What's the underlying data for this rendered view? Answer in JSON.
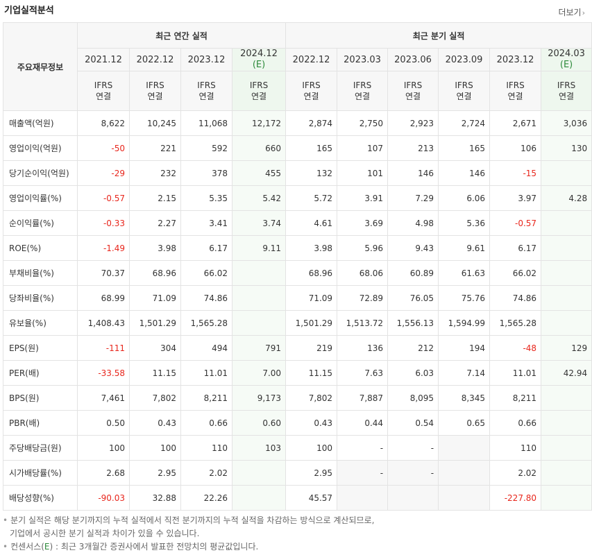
{
  "title": "기업실적분석",
  "more_label": "더보기",
  "header": {
    "main_label": "주요재무정보",
    "annual_label": "최근 연간 실적",
    "quarter_label": "최근 분기 실적",
    "est_mark": "(E)",
    "columns": [
      {
        "date": "2021.12",
        "standard": "IFRS",
        "basis": "연결",
        "est": false
      },
      {
        "date": "2022.12",
        "standard": "IFRS",
        "basis": "연결",
        "est": false
      },
      {
        "date": "2023.12",
        "standard": "IFRS",
        "basis": "연결",
        "est": false
      },
      {
        "date": "2024.12",
        "standard": "IFRS",
        "basis": "연결",
        "est": true
      },
      {
        "date": "2022.12",
        "standard": "IFRS",
        "basis": "연결",
        "est": false
      },
      {
        "date": "2023.03",
        "standard": "IFRS",
        "basis": "연결",
        "est": false
      },
      {
        "date": "2023.06",
        "standard": "IFRS",
        "basis": "연결",
        "est": false
      },
      {
        "date": "2023.09",
        "standard": "IFRS",
        "basis": "연결",
        "est": false
      },
      {
        "date": "2023.12",
        "standard": "IFRS",
        "basis": "연결",
        "est": false
      },
      {
        "date": "2024.03",
        "standard": "IFRS",
        "basis": "연결",
        "est": true
      }
    ]
  },
  "rows": [
    {
      "label": "매출액(억원)",
      "values": [
        "8,622",
        "10,245",
        "11,068",
        "12,172",
        "2,874",
        "2,750",
        "2,923",
        "2,724",
        "2,671",
        "3,036"
      ]
    },
    {
      "label": "영업이익(억원)",
      "values": [
        "-50",
        "221",
        "592",
        "660",
        "165",
        "107",
        "213",
        "165",
        "106",
        "130"
      ]
    },
    {
      "label": "당기순이익(억원)",
      "values": [
        "-29",
        "232",
        "378",
        "455",
        "132",
        "101",
        "146",
        "146",
        "-15",
        ""
      ]
    },
    {
      "label": "영업이익률(%)",
      "values": [
        "-0.57",
        "2.15",
        "5.35",
        "5.42",
        "5.72",
        "3.91",
        "7.29",
        "6.06",
        "3.97",
        "4.28"
      ]
    },
    {
      "label": "순이익률(%)",
      "values": [
        "-0.33",
        "2.27",
        "3.41",
        "3.74",
        "4.61",
        "3.69",
        "4.98",
        "5.36",
        "-0.57",
        ""
      ]
    },
    {
      "label": "ROE(%)",
      "values": [
        "-1.49",
        "3.98",
        "6.17",
        "9.11",
        "3.98",
        "5.96",
        "9.43",
        "9.61",
        "6.17",
        ""
      ]
    },
    {
      "label": "부채비율(%)",
      "values": [
        "70.37",
        "68.96",
        "66.02",
        "",
        "68.96",
        "68.06",
        "60.89",
        "61.63",
        "66.02",
        ""
      ]
    },
    {
      "label": "당좌비율(%)",
      "values": [
        "68.99",
        "71.09",
        "74.86",
        "",
        "71.09",
        "72.89",
        "76.05",
        "75.76",
        "74.86",
        ""
      ]
    },
    {
      "label": "유보율(%)",
      "values": [
        "1,408.43",
        "1,501.29",
        "1,565.28",
        "",
        "1,501.29",
        "1,513.72",
        "1,556.13",
        "1,594.99",
        "1,565.28",
        ""
      ]
    },
    {
      "label": "EPS(원)",
      "values": [
        "-111",
        "304",
        "494",
        "791",
        "219",
        "136",
        "212",
        "194",
        "-48",
        "129"
      ]
    },
    {
      "label": "PER(배)",
      "values": [
        "-33.58",
        "11.15",
        "11.01",
        "7.00",
        "11.15",
        "7.63",
        "6.03",
        "7.14",
        "11.01",
        "42.94"
      ]
    },
    {
      "label": "BPS(원)",
      "values": [
        "7,461",
        "7,802",
        "8,211",
        "9,173",
        "7,802",
        "7,887",
        "8,095",
        "8,345",
        "8,211",
        ""
      ]
    },
    {
      "label": "PBR(배)",
      "values": [
        "0.50",
        "0.43",
        "0.66",
        "0.60",
        "0.43",
        "0.44",
        "0.54",
        "0.65",
        "0.66",
        ""
      ]
    },
    {
      "label": "주당배당금(원)",
      "values": [
        "100",
        "100",
        "110",
        "103",
        "100",
        "-",
        "-",
        "",
        "110",
        ""
      ]
    },
    {
      "label": "시가배당률(%)",
      "values": [
        "2.68",
        "2.95",
        "2.02",
        "",
        "2.95",
        "-",
        "-",
        "",
        "2.02",
        ""
      ]
    },
    {
      "label": "배당성향(%)",
      "values": [
        "-90.03",
        "32.88",
        "22.26",
        "",
        "45.57",
        "",
        "",
        "",
        "-227.80",
        ""
      ]
    }
  ],
  "footnotes": {
    "line1": "분기 실적은 해당 분기까지의 누적 실적에서 직전 분기까지의 누적 실적을 차감하는 방식으로 계산되므로,",
    "line2": "기업에서 공시한 분기 실적과 차이가 있을 수 있습니다.",
    "line3_prefix": "컨센서스(",
    "line3_mark": "E",
    "line3_suffix": ") : 최근 3개월간 증권사에서 발표한 전망치의 평균값입니다."
  },
  "colors": {
    "negative": "#e8261c",
    "ifrs": "#e0631a",
    "estimate": "#2e8b3b"
  }
}
